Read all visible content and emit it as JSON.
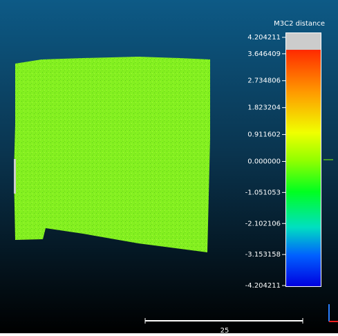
{
  "scale": {
    "title": "M3C2 distance",
    "ticks": [
      "4.204211",
      "3.646409",
      "2.734806",
      "1.823204",
      "0.911602",
      "0.000000",
      "-1.051053",
      "-2.102106",
      "-3.153158",
      "-4.204211"
    ]
  },
  "scale_bar": {
    "label": "25"
  }
}
